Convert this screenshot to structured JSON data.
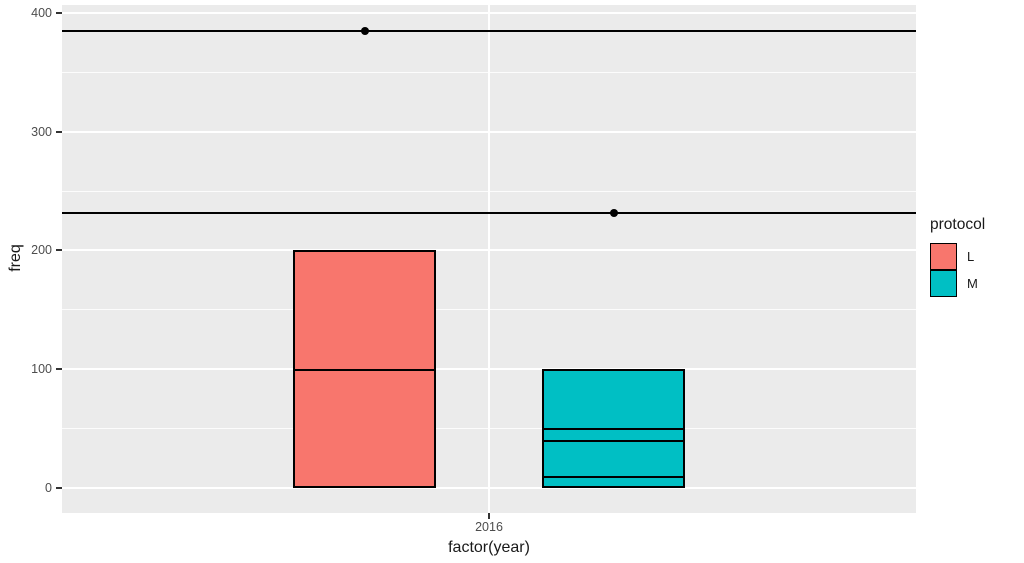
{
  "chart_data": {
    "type": "bar",
    "subtype": "stacked-dodged",
    "title": "",
    "xlabel": "factor(year)",
    "ylabel": "freq",
    "categories": [
      "2016"
    ],
    "y_ticks": [
      0,
      100,
      200,
      300,
      400
    ],
    "y_tick_labels": [
      "0",
      "100",
      "200",
      "300",
      "400"
    ],
    "y_minor_ticks": [
      50,
      150,
      250,
      350
    ],
    "ylim": [
      -21,
      407
    ],
    "grid": "on",
    "panel_bg": "#EBEBEB",
    "grid_color": "#FFFFFF",
    "series": [
      {
        "name": "L",
        "color": "#F8766D",
        "category": "2016",
        "segments_bottom_to_top": [
          100,
          100
        ],
        "total": 200
      },
      {
        "name": "M",
        "color": "#00BFC4",
        "category": "2016",
        "segments_bottom_to_top": [
          10,
          30,
          10,
          50
        ],
        "total": 100
      }
    ],
    "reference_lines": [
      {
        "value": 385,
        "series": "L",
        "color": "#000000",
        "point_at_bar_center": true
      },
      {
        "value": 232,
        "series": "M",
        "color": "#000000",
        "point_at_bar_center": true
      }
    ],
    "legend": {
      "title": "protocol",
      "position": "right",
      "entries": [
        {
          "label": "L",
          "color": "#F8766D"
        },
        {
          "label": "M",
          "color": "#00BFC4"
        }
      ]
    }
  }
}
